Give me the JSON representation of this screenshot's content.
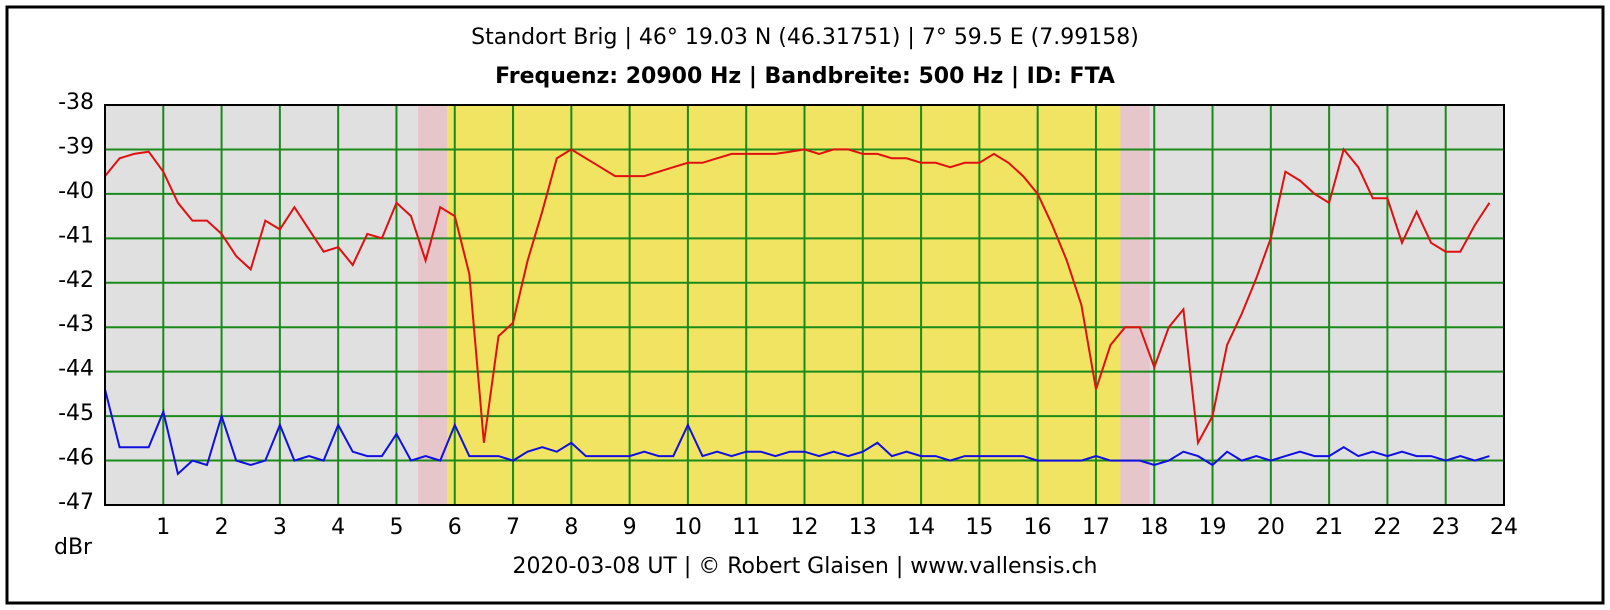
{
  "chart_data": {
    "type": "line",
    "title": "Standort Brig | 46° 19.03 N (46.31751) | 7° 59.5 E (7.99158)",
    "subtitle": "Frequenz: 20900 Hz | Bandbreite: 500 Hz | ID: FTA",
    "footer": "2020-03-08 UT | © Robert Glaisen | www.vallensis.ch",
    "y_label": "dBr",
    "xlim": [
      0,
      24
    ],
    "ylim": [
      -47,
      -38
    ],
    "xticks": [
      1,
      2,
      3,
      4,
      5,
      6,
      7,
      8,
      9,
      10,
      11,
      12,
      13,
      14,
      15,
      16,
      17,
      18,
      19,
      20,
      21,
      22,
      23,
      24
    ],
    "yticks": [
      -38,
      -39,
      -40,
      -41,
      -42,
      -43,
      -44,
      -45,
      -46,
      -47
    ],
    "grid": true,
    "grid_color": "#1a8a1a",
    "background": "#e0e0e0",
    "bands": [
      {
        "from": 5.37,
        "to": 5.87,
        "color": "#e6c6ca"
      },
      {
        "from": 5.87,
        "to": 17.42,
        "color": "#f0e462"
      },
      {
        "from": 17.42,
        "to": 17.92,
        "color": "#e6c6ca"
      }
    ],
    "x": [
      0,
      0.25,
      0.5,
      0.75,
      1,
      1.25,
      1.5,
      1.75,
      2,
      2.25,
      2.5,
      2.75,
      3,
      3.25,
      3.5,
      3.75,
      4,
      4.25,
      4.5,
      4.75,
      5,
      5.25,
      5.5,
      5.75,
      6,
      6.25,
      6.5,
      6.75,
      7,
      7.25,
      7.5,
      7.75,
      8,
      8.25,
      8.5,
      8.75,
      9,
      9.25,
      9.5,
      9.75,
      10,
      10.25,
      10.5,
      10.75,
      11,
      11.25,
      11.5,
      11.75,
      12,
      12.25,
      12.5,
      12.75,
      13,
      13.25,
      13.5,
      13.75,
      14,
      14.25,
      14.5,
      14.75,
      15,
      15.25,
      15.5,
      15.75,
      16,
      16.25,
      16.5,
      16.75,
      17,
      17.25,
      17.5,
      17.75,
      18,
      18.25,
      18.5,
      18.75,
      19,
      19.25,
      19.5,
      19.75,
      20,
      20.25,
      20.5,
      20.75,
      21,
      21.25,
      21.5,
      21.75,
      22,
      22.25,
      22.5,
      22.75,
      23,
      23.25,
      23.5,
      23.75
    ],
    "series": [
      {
        "color": "#e01010",
        "values": [
          -39.6,
          -39.2,
          -39.1,
          -39.05,
          -39.5,
          -40.2,
          -40.6,
          -40.6,
          -40.9,
          -41.4,
          -41.7,
          -40.6,
          -40.8,
          -40.3,
          -40.8,
          -41.3,
          -41.2,
          -41.6,
          -40.9,
          -41.0,
          -40.2,
          -40.5,
          -41.5,
          -40.3,
          -40.5,
          -41.8,
          -45.6,
          -43.2,
          -42.9,
          -41.5,
          -40.4,
          -39.2,
          -39.0,
          -39.2,
          -39.4,
          -39.6,
          -39.6,
          -39.6,
          -39.5,
          -39.4,
          -39.3,
          -39.3,
          -39.2,
          -39.1,
          -39.1,
          -39.1,
          -39.1,
          -39.05,
          -39.0,
          -39.1,
          -39.0,
          -39.0,
          -39.1,
          -39.1,
          -39.2,
          -39.2,
          -39.3,
          -39.3,
          -39.4,
          -39.3,
          -39.3,
          -39.1,
          -39.3,
          -39.6,
          -40.0,
          -40.7,
          -41.5,
          -42.5,
          -44.4,
          -43.4,
          -43.0,
          -43.0,
          -43.9,
          -43.0,
          -42.6,
          -45.6,
          -45.0,
          -43.4,
          -42.7,
          -41.9,
          -41.0,
          -39.5,
          -39.7,
          -40.0,
          -40.2,
          -39.0,
          -39.4,
          -40.1,
          -40.1,
          -41.1,
          -40.4,
          -41.1,
          -41.3,
          -41.3,
          -40.7,
          -40.2
        ]
      },
      {
        "color": "#1010e0",
        "values": [
          -44.4,
          -45.7,
          -45.7,
          -45.7,
          -44.9,
          -46.3,
          -46.0,
          -46.1,
          -45.0,
          -46.0,
          -46.1,
          -46.0,
          -45.2,
          -46.0,
          -45.9,
          -46.0,
          -45.2,
          -45.8,
          -45.9,
          -45.9,
          -45.4,
          -46.0,
          -45.9,
          -46.0,
          -45.2,
          -45.9,
          -45.9,
          -45.9,
          -46.0,
          -45.8,
          -45.7,
          -45.8,
          -45.6,
          -45.9,
          -45.9,
          -45.9,
          -45.9,
          -45.8,
          -45.9,
          -45.9,
          -45.2,
          -45.9,
          -45.8,
          -45.9,
          -45.8,
          -45.8,
          -45.9,
          -45.8,
          -45.8,
          -45.9,
          -45.8,
          -45.9,
          -45.8,
          -45.6,
          -45.9,
          -45.8,
          -45.9,
          -45.9,
          -46.0,
          -45.9,
          -45.9,
          -45.9,
          -45.9,
          -45.9,
          -46.0,
          -46.0,
          -46.0,
          -46.0,
          -45.9,
          -46.0,
          -46.0,
          -46.0,
          -46.1,
          -46.0,
          -45.8,
          -45.9,
          -46.1,
          -45.8,
          -46.0,
          -45.9,
          -46.0,
          -45.9,
          -45.8,
          -45.9,
          -45.9,
          -45.7,
          -45.9,
          -45.8,
          -45.9,
          -45.8,
          -45.9,
          -45.9,
          -46.0,
          -45.9,
          -46.0,
          -45.9
        ]
      }
    ]
  }
}
